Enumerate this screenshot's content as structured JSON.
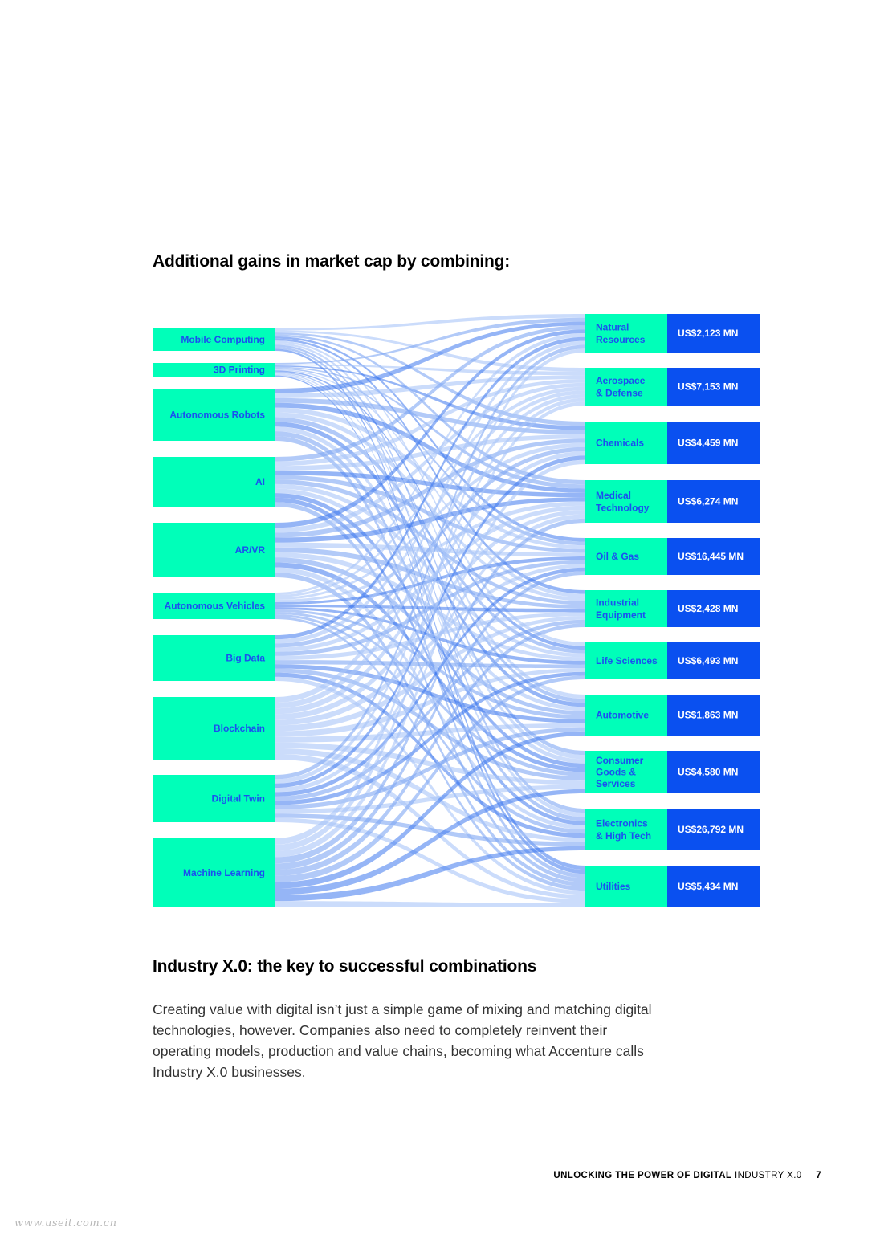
{
  "page": {
    "title": "Additional gains in market cap by combining:",
    "section_heading": "Industry X.0: the key to successful combinations",
    "body": "Creating value with digital isn’t just a simple game of mixing and matching digital technologies, however. Companies also need to completely reinvent their operating models, production and value chains, becoming what Accenture calls Industry X.0 businesses.",
    "footer": {
      "bold": "UNLOCKING THE POWER OF DIGITAL",
      "light": "INDUSTRY X.0",
      "page_number": "7"
    },
    "watermark": "www.useit.com.cn"
  },
  "colors": {
    "technology_node": "#00FFB9",
    "industry_node": "#00FFB9",
    "value_box": "#0A50F0",
    "label_text": "#1A50F0",
    "value_text": "#FFFFFF",
    "flow_light": "#A9C4F8",
    "flow_mid": "#7EA6F4",
    "flow_dark": "#3E78EE"
  },
  "chart_data": {
    "type": "sankey",
    "technologies": [
      "Mobile Computing",
      "3D Printing",
      "Autonomous Robots",
      "AI",
      "AR/VR",
      "Autonomous Vehicles",
      "Big Data",
      "Blockchain",
      "Digital Twin",
      "Machine Learning"
    ],
    "industries": [
      {
        "name": "Natural Resources",
        "value_label": "US$2,123 MN"
      },
      {
        "name": "Aerospace & Defense",
        "value_label": "US$7,153 MN"
      },
      {
        "name": "Chemicals",
        "value_label": "US$4,459 MN"
      },
      {
        "name": "Medical Technology",
        "value_label": "US$6,274 MN"
      },
      {
        "name": "Oil & Gas",
        "value_label": "US$16,445 MN"
      },
      {
        "name": "Industrial Equipment",
        "value_label": "US$2,428 MN"
      },
      {
        "name": "Life Sciences",
        "value_label": "US$6,493 MN"
      },
      {
        "name": "Automotive",
        "value_label": "US$1,863 MN"
      },
      {
        "name": "Consumer Goods & Services",
        "value_label": "US$4,580 MN"
      },
      {
        "name": "Electronics & High Tech",
        "value_label": "US$26,792 MN"
      },
      {
        "name": "Utilities",
        "value_label": "US$5,434 MN"
      }
    ]
  }
}
